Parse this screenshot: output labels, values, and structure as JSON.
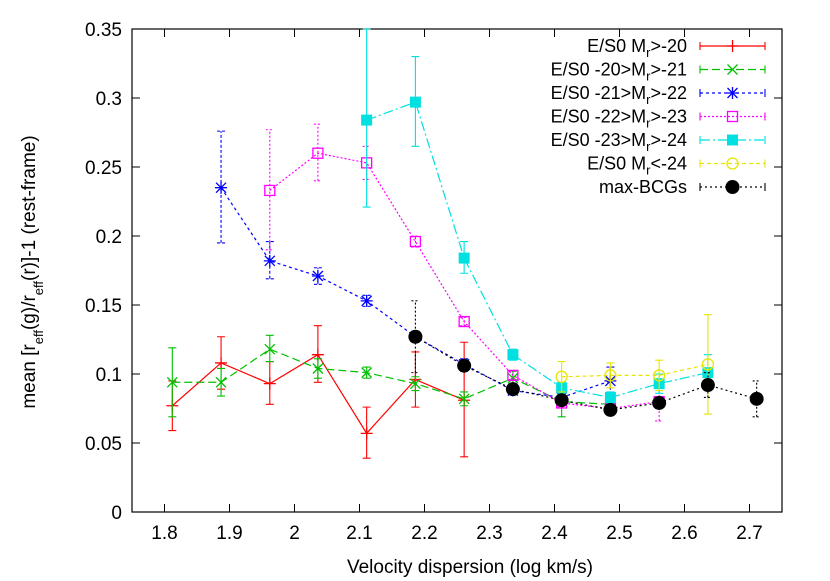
{
  "chart_data": {
    "type": "line",
    "title": "",
    "xlabel": "Velocity dispersion (log km/s)",
    "ylabel": "mean [r_eff(g)/r_eff(r)]-1 (rest-frame)",
    "xlim": [
      1.75,
      2.75
    ],
    "ylim": [
      0,
      0.35
    ],
    "xticks": [
      1.8,
      1.9,
      2.0,
      2.1,
      2.2,
      2.3,
      2.4,
      2.5,
      2.6,
      2.7
    ],
    "xtick_labels": [
      "1.8",
      "1.9",
      "2",
      "2.1",
      "2.2",
      "2.3",
      "2.4",
      "2.5",
      "2.6",
      "2.7"
    ],
    "yticks": [
      0,
      0.05,
      0.1,
      0.15,
      0.2,
      0.25,
      0.3,
      0.35
    ],
    "ytick_labels": [
      "0",
      "0.05",
      "0.1",
      "0.15",
      "0.2",
      "0.25",
      "0.3",
      "0.35"
    ],
    "grid": false,
    "legend_position": "top-right",
    "series": [
      {
        "name": "E/S0 Mr>-20",
        "legend_parts": [
          "E/S0 M",
          "r",
          ">-20"
        ],
        "color": "#ff0000",
        "marker": "plus",
        "dash": "",
        "points": [
          {
            "x": 1.812,
            "y": 0.077,
            "lo": 0.059,
            "hi": 0.095
          },
          {
            "x": 1.887,
            "y": 0.108,
            "lo": 0.089,
            "hi": 0.127
          },
          {
            "x": 1.962,
            "y": 0.093,
            "lo": 0.078,
            "hi": 0.109
          },
          {
            "x": 2.036,
            "y": 0.114,
            "lo": 0.094,
            "hi": 0.135
          },
          {
            "x": 2.111,
            "y": 0.057,
            "lo": 0.039,
            "hi": 0.076
          },
          {
            "x": 2.186,
            "y": 0.096,
            "lo": 0.076,
            "hi": 0.116
          },
          {
            "x": 2.261,
            "y": 0.081,
            "lo": 0.04,
            "hi": 0.123
          }
        ]
      },
      {
        "name": "E/S0 -20>Mr>-21",
        "legend_parts": [
          "E/S0 -20>M",
          "r",
          ">-21"
        ],
        "color": "#00c000",
        "marker": "x",
        "dash": "8,4",
        "points": [
          {
            "x": 1.812,
            "y": 0.094,
            "lo": 0.069,
            "hi": 0.119
          },
          {
            "x": 1.887,
            "y": 0.094,
            "lo": 0.084,
            "hi": 0.104
          },
          {
            "x": 1.962,
            "y": 0.118,
            "lo": 0.109,
            "hi": 0.128
          },
          {
            "x": 2.036,
            "y": 0.104,
            "lo": 0.097,
            "hi": 0.111
          },
          {
            "x": 2.111,
            "y": 0.101,
            "lo": 0.097,
            "hi": 0.105
          },
          {
            "x": 2.186,
            "y": 0.093,
            "lo": 0.088,
            "hi": 0.098
          },
          {
            "x": 2.261,
            "y": 0.082,
            "lo": 0.077,
            "hi": 0.087
          },
          {
            "x": 2.336,
            "y": 0.097,
            "lo": 0.092,
            "hi": 0.102
          },
          {
            "x": 2.411,
            "y": 0.08,
            "lo": 0.069,
            "hi": 0.091
          },
          {
            "x": 2.486,
            "y": 0.078,
            "lo": 0.073,
            "hi": 0.083
          }
        ]
      },
      {
        "name": "E/S0 -21>Mr>-22",
        "legend_parts": [
          "E/S0 -21>M",
          "r",
          ">-22"
        ],
        "color": "#0000ff",
        "marker": "star",
        "dash": "3,3",
        "points": [
          {
            "x": 1.887,
            "y": 0.235,
            "lo": 0.195,
            "hi": 0.276
          },
          {
            "x": 1.962,
            "y": 0.182,
            "lo": 0.169,
            "hi": 0.196
          },
          {
            "x": 2.036,
            "y": 0.171,
            "lo": 0.165,
            "hi": 0.177
          },
          {
            "x": 2.111,
            "y": 0.153,
            "lo": 0.149,
            "hi": 0.157
          },
          {
            "x": 2.186,
            "y": 0.127,
            "lo": 0.123,
            "hi": 0.131
          },
          {
            "x": 2.261,
            "y": 0.107,
            "lo": 0.103,
            "hi": 0.111
          },
          {
            "x": 2.336,
            "y": 0.088,
            "lo": 0.085,
            "hi": 0.091
          },
          {
            "x": 2.411,
            "y": 0.083,
            "lo": 0.08,
            "hi": 0.086
          },
          {
            "x": 2.486,
            "y": 0.095,
            "lo": 0.085,
            "hi": 0.105
          }
        ]
      },
      {
        "name": "E/S0 -22>Mr>-23",
        "legend_parts": [
          "E/S0 -22>M",
          "r",
          ">-23"
        ],
        "color": "#ff00ff",
        "marker": "square-open",
        "dash": "2,2",
        "points": [
          {
            "x": 1.962,
            "y": 0.233,
            "lo": 0.19,
            "hi": 0.277
          },
          {
            "x": 2.036,
            "y": 0.26,
            "lo": 0.24,
            "hi": 0.281
          },
          {
            "x": 2.111,
            "y": 0.253,
            "lo": 0.241,
            "hi": 0.265
          },
          {
            "x": 2.186,
            "y": 0.196,
            "lo": 0.192,
            "hi": 0.2
          },
          {
            "x": 2.261,
            "y": 0.138,
            "lo": 0.135,
            "hi": 0.141
          },
          {
            "x": 2.336,
            "y": 0.099,
            "lo": 0.096,
            "hi": 0.102
          },
          {
            "x": 2.411,
            "y": 0.079,
            "lo": 0.076,
            "hi": 0.082
          },
          {
            "x": 2.486,
            "y": 0.075,
            "lo": 0.071,
            "hi": 0.079
          },
          {
            "x": 2.561,
            "y": 0.08,
            "lo": 0.066,
            "hi": 0.094
          }
        ]
      },
      {
        "name": "E/S0 -23>Mr>-24",
        "legend_parts": [
          "E/S0 -23>M",
          "r",
          ">-24"
        ],
        "color": "#00e0e0",
        "marker": "square-filled",
        "dash": "10,3,2,3",
        "points": [
          {
            "x": 2.111,
            "y": 0.284,
            "lo": 0.221,
            "hi": 0.35
          },
          {
            "x": 2.186,
            "y": 0.297,
            "lo": 0.265,
            "hi": 0.33
          },
          {
            "x": 2.261,
            "y": 0.184,
            "lo": 0.173,
            "hi": 0.196
          },
          {
            "x": 2.336,
            "y": 0.114,
            "lo": 0.11,
            "hi": 0.118
          },
          {
            "x": 2.411,
            "y": 0.09,
            "lo": 0.086,
            "hi": 0.094
          },
          {
            "x": 2.486,
            "y": 0.083,
            "lo": 0.079,
            "hi": 0.087
          },
          {
            "x": 2.561,
            "y": 0.093,
            "lo": 0.086,
            "hi": 0.1
          },
          {
            "x": 2.636,
            "y": 0.101,
            "lo": 0.088,
            "hi": 0.114
          }
        ]
      },
      {
        "name": "E/S0 Mr<-24",
        "legend_parts": [
          "E/S0 M",
          "r",
          "<-24"
        ],
        "color": "#e6e600",
        "marker": "circle-open",
        "dash": "4,3",
        "points": [
          {
            "x": 2.411,
            "y": 0.098,
            "lo": 0.087,
            "hi": 0.109
          },
          {
            "x": 2.486,
            "y": 0.099,
            "lo": 0.09,
            "hi": 0.108
          },
          {
            "x": 2.561,
            "y": 0.099,
            "lo": 0.088,
            "hi": 0.11
          },
          {
            "x": 2.636,
            "y": 0.107,
            "lo": 0.071,
            "hi": 0.143
          }
        ]
      },
      {
        "name": "max-BCGs",
        "legend_parts": [
          "max-BCGs",
          "",
          ""
        ],
        "color": "#000000",
        "marker": "circle-filled",
        "dash": "2,3",
        "points": [
          {
            "x": 2.186,
            "y": 0.127,
            "lo": 0.101,
            "hi": 0.153
          },
          {
            "x": 2.261,
            "y": 0.106,
            "lo": 0.102,
            "hi": 0.11
          },
          {
            "x": 2.336,
            "y": 0.089,
            "lo": 0.086,
            "hi": 0.092
          },
          {
            "x": 2.411,
            "y": 0.081,
            "lo": 0.078,
            "hi": 0.084
          },
          {
            "x": 2.486,
            "y": 0.074,
            "lo": 0.071,
            "hi": 0.077
          },
          {
            "x": 2.561,
            "y": 0.079,
            "lo": 0.075,
            "hi": 0.083
          },
          {
            "x": 2.636,
            "y": 0.092,
            "lo": 0.083,
            "hi": 0.101
          },
          {
            "x": 2.711,
            "y": 0.082,
            "lo": 0.069,
            "hi": 0.095
          }
        ]
      }
    ]
  }
}
